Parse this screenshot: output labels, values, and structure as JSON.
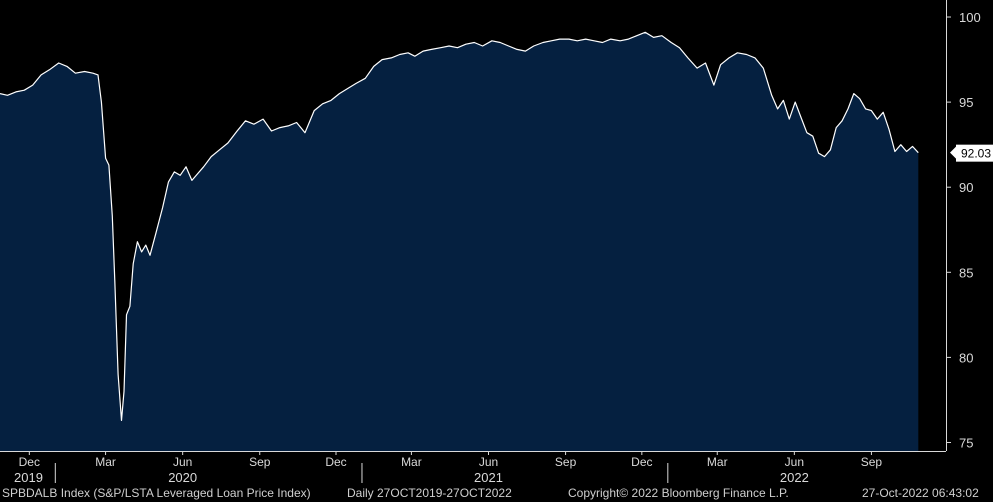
{
  "chart_data": {
    "type": "area",
    "series": [
      {
        "points": [
          [
            "2019-10-27",
            95.5
          ],
          [
            "2019-11-05",
            95.4
          ],
          [
            "2019-11-15",
            95.6
          ],
          [
            "2019-11-25",
            95.7
          ],
          [
            "2019-12-05",
            96.0
          ],
          [
            "2019-12-15",
            96.6
          ],
          [
            "2019-12-25",
            96.9
          ],
          [
            "2020-01-05",
            97.3
          ],
          [
            "2020-01-15",
            97.1
          ],
          [
            "2020-01-25",
            96.7
          ],
          [
            "2020-02-05",
            96.8
          ],
          [
            "2020-02-15",
            96.7
          ],
          [
            "2020-02-21",
            96.6
          ],
          [
            "2020-02-25",
            95.0
          ],
          [
            "2020-03-01",
            91.7
          ],
          [
            "2020-03-05",
            91.3
          ],
          [
            "2020-03-09",
            88.3
          ],
          [
            "2020-03-12",
            84.5
          ],
          [
            "2020-03-16",
            79.0
          ],
          [
            "2020-03-20",
            76.3
          ],
          [
            "2020-03-23",
            78.0
          ],
          [
            "2020-03-26",
            82.5
          ],
          [
            "2020-03-30",
            83.0
          ],
          [
            "2020-04-03",
            85.5
          ],
          [
            "2020-04-08",
            86.8
          ],
          [
            "2020-04-13",
            86.2
          ],
          [
            "2020-04-18",
            86.6
          ],
          [
            "2020-04-23",
            86.0
          ],
          [
            "2020-04-30",
            87.3
          ],
          [
            "2020-05-08",
            88.8
          ],
          [
            "2020-05-15",
            90.3
          ],
          [
            "2020-05-22",
            90.9
          ],
          [
            "2020-05-29",
            90.7
          ],
          [
            "2020-06-05",
            91.2
          ],
          [
            "2020-06-12",
            90.4
          ],
          [
            "2020-06-19",
            90.8
          ],
          [
            "2020-06-26",
            91.2
          ],
          [
            "2020-07-05",
            91.8
          ],
          [
            "2020-07-15",
            92.2
          ],
          [
            "2020-07-25",
            92.6
          ],
          [
            "2020-08-05",
            93.3
          ],
          [
            "2020-08-15",
            93.9
          ],
          [
            "2020-08-25",
            93.7
          ],
          [
            "2020-09-05",
            94.0
          ],
          [
            "2020-09-15",
            93.3
          ],
          [
            "2020-09-25",
            93.5
          ],
          [
            "2020-10-05",
            93.6
          ],
          [
            "2020-10-15",
            93.8
          ],
          [
            "2020-10-25",
            93.2
          ],
          [
            "2020-11-05",
            94.5
          ],
          [
            "2020-11-15",
            94.9
          ],
          [
            "2020-11-25",
            95.1
          ],
          [
            "2020-12-05",
            95.5
          ],
          [
            "2020-12-15",
            95.8
          ],
          [
            "2020-12-25",
            96.1
          ],
          [
            "2021-01-05",
            96.4
          ],
          [
            "2021-01-15",
            97.1
          ],
          [
            "2021-01-25",
            97.5
          ],
          [
            "2021-02-05",
            97.6
          ],
          [
            "2021-02-15",
            97.8
          ],
          [
            "2021-02-25",
            97.9
          ],
          [
            "2021-03-05",
            97.7
          ],
          [
            "2021-03-15",
            98.0
          ],
          [
            "2021-03-25",
            98.1
          ],
          [
            "2021-04-05",
            98.2
          ],
          [
            "2021-04-15",
            98.3
          ],
          [
            "2021-04-25",
            98.2
          ],
          [
            "2021-05-05",
            98.4
          ],
          [
            "2021-05-15",
            98.5
          ],
          [
            "2021-05-25",
            98.3
          ],
          [
            "2021-06-05",
            98.6
          ],
          [
            "2021-06-15",
            98.5
          ],
          [
            "2021-06-25",
            98.3
          ],
          [
            "2021-07-05",
            98.1
          ],
          [
            "2021-07-15",
            98.0
          ],
          [
            "2021-07-25",
            98.3
          ],
          [
            "2021-08-05",
            98.5
          ],
          [
            "2021-08-15",
            98.6
          ],
          [
            "2021-08-25",
            98.7
          ],
          [
            "2021-09-05",
            98.7
          ],
          [
            "2021-09-15",
            98.6
          ],
          [
            "2021-09-25",
            98.7
          ],
          [
            "2021-10-05",
            98.6
          ],
          [
            "2021-10-15",
            98.5
          ],
          [
            "2021-10-25",
            98.7
          ],
          [
            "2021-11-05",
            98.6
          ],
          [
            "2021-11-15",
            98.7
          ],
          [
            "2021-11-25",
            98.9
          ],
          [
            "2021-12-05",
            99.1
          ],
          [
            "2021-12-15",
            98.8
          ],
          [
            "2021-12-25",
            98.9
          ],
          [
            "2022-01-05",
            98.5
          ],
          [
            "2022-01-15",
            98.2
          ],
          [
            "2022-01-25",
            97.6
          ],
          [
            "2022-02-05",
            97.0
          ],
          [
            "2022-02-15",
            97.3
          ],
          [
            "2022-02-25",
            96.0
          ],
          [
            "2022-03-05",
            97.2
          ],
          [
            "2022-03-15",
            97.6
          ],
          [
            "2022-03-25",
            97.9
          ],
          [
            "2022-04-05",
            97.8
          ],
          [
            "2022-04-15",
            97.6
          ],
          [
            "2022-04-25",
            97.0
          ],
          [
            "2022-05-05",
            95.4
          ],
          [
            "2022-05-12",
            94.6
          ],
          [
            "2022-05-19",
            95.1
          ],
          [
            "2022-05-26",
            94.0
          ],
          [
            "2022-06-02",
            95.0
          ],
          [
            "2022-06-09",
            94.1
          ],
          [
            "2022-06-16",
            93.2
          ],
          [
            "2022-06-23",
            93.0
          ],
          [
            "2022-06-30",
            92.0
          ],
          [
            "2022-07-07",
            91.8
          ],
          [
            "2022-07-14",
            92.2
          ],
          [
            "2022-07-21",
            93.5
          ],
          [
            "2022-07-28",
            93.9
          ],
          [
            "2022-08-04",
            94.6
          ],
          [
            "2022-08-11",
            95.5
          ],
          [
            "2022-08-18",
            95.2
          ],
          [
            "2022-08-25",
            94.6
          ],
          [
            "2022-09-01",
            94.5
          ],
          [
            "2022-09-08",
            94.0
          ],
          [
            "2022-09-15",
            94.4
          ],
          [
            "2022-09-22",
            93.4
          ],
          [
            "2022-09-29",
            92.1
          ],
          [
            "2022-10-06",
            92.5
          ],
          [
            "2022-10-13",
            92.1
          ],
          [
            "2022-10-20",
            92.4
          ],
          [
            "2022-10-27",
            92.03
          ]
        ]
      }
    ],
    "ylim": [
      74.5,
      101.0
    ],
    "yticks": [
      75,
      80,
      85,
      90,
      95,
      100
    ],
    "xlim": [
      "2019-10-27",
      "2022-11-29"
    ],
    "month_ticks": [
      {
        "label": "Dec",
        "date": "2019-12-01"
      },
      {
        "label": "Mar",
        "date": "2020-03-01"
      },
      {
        "label": "Jun",
        "date": "2020-06-01"
      },
      {
        "label": "Sep",
        "date": "2020-09-01"
      },
      {
        "label": "Dec",
        "date": "2020-12-01"
      },
      {
        "label": "Mar",
        "date": "2021-03-01"
      },
      {
        "label": "Jun",
        "date": "2021-06-01"
      },
      {
        "label": "Sep",
        "date": "2021-09-01"
      },
      {
        "label": "Dec",
        "date": "2021-12-01"
      },
      {
        "label": "Mar",
        "date": "2022-03-01"
      },
      {
        "label": "Jun",
        "date": "2022-06-01"
      },
      {
        "label": "Sep",
        "date": "2022-09-01"
      }
    ],
    "year_labels": [
      {
        "label": "2019",
        "date": "2019-12-01"
      },
      {
        "label": "2020",
        "date": "2020-06-01"
      },
      {
        "label": "2021",
        "date": "2021-06-01"
      },
      {
        "label": "2022",
        "date": "2022-06-01"
      }
    ],
    "year_boundaries": [
      "2020-01-01",
      "2021-01-01",
      "2022-01-01"
    ],
    "last_value_label": "92.03",
    "grid": false,
    "colors": {
      "fill": "#052040",
      "line": "#ffffff",
      "background": "#000000",
      "axis": "#d9d9d9",
      "callout_bg": "#ffffff",
      "callout_text": "#000000"
    }
  },
  "footer": {
    "ticker": "SPBDALB Index (S&P/LSTA Leveraged Loan Price Index)",
    "range": "Daily 27OCT2019-27OCT2022",
    "copyright": "Copyright© 2022 Bloomberg Finance L.P.",
    "timestamp": "27-Oct-2022 06:43:02"
  }
}
